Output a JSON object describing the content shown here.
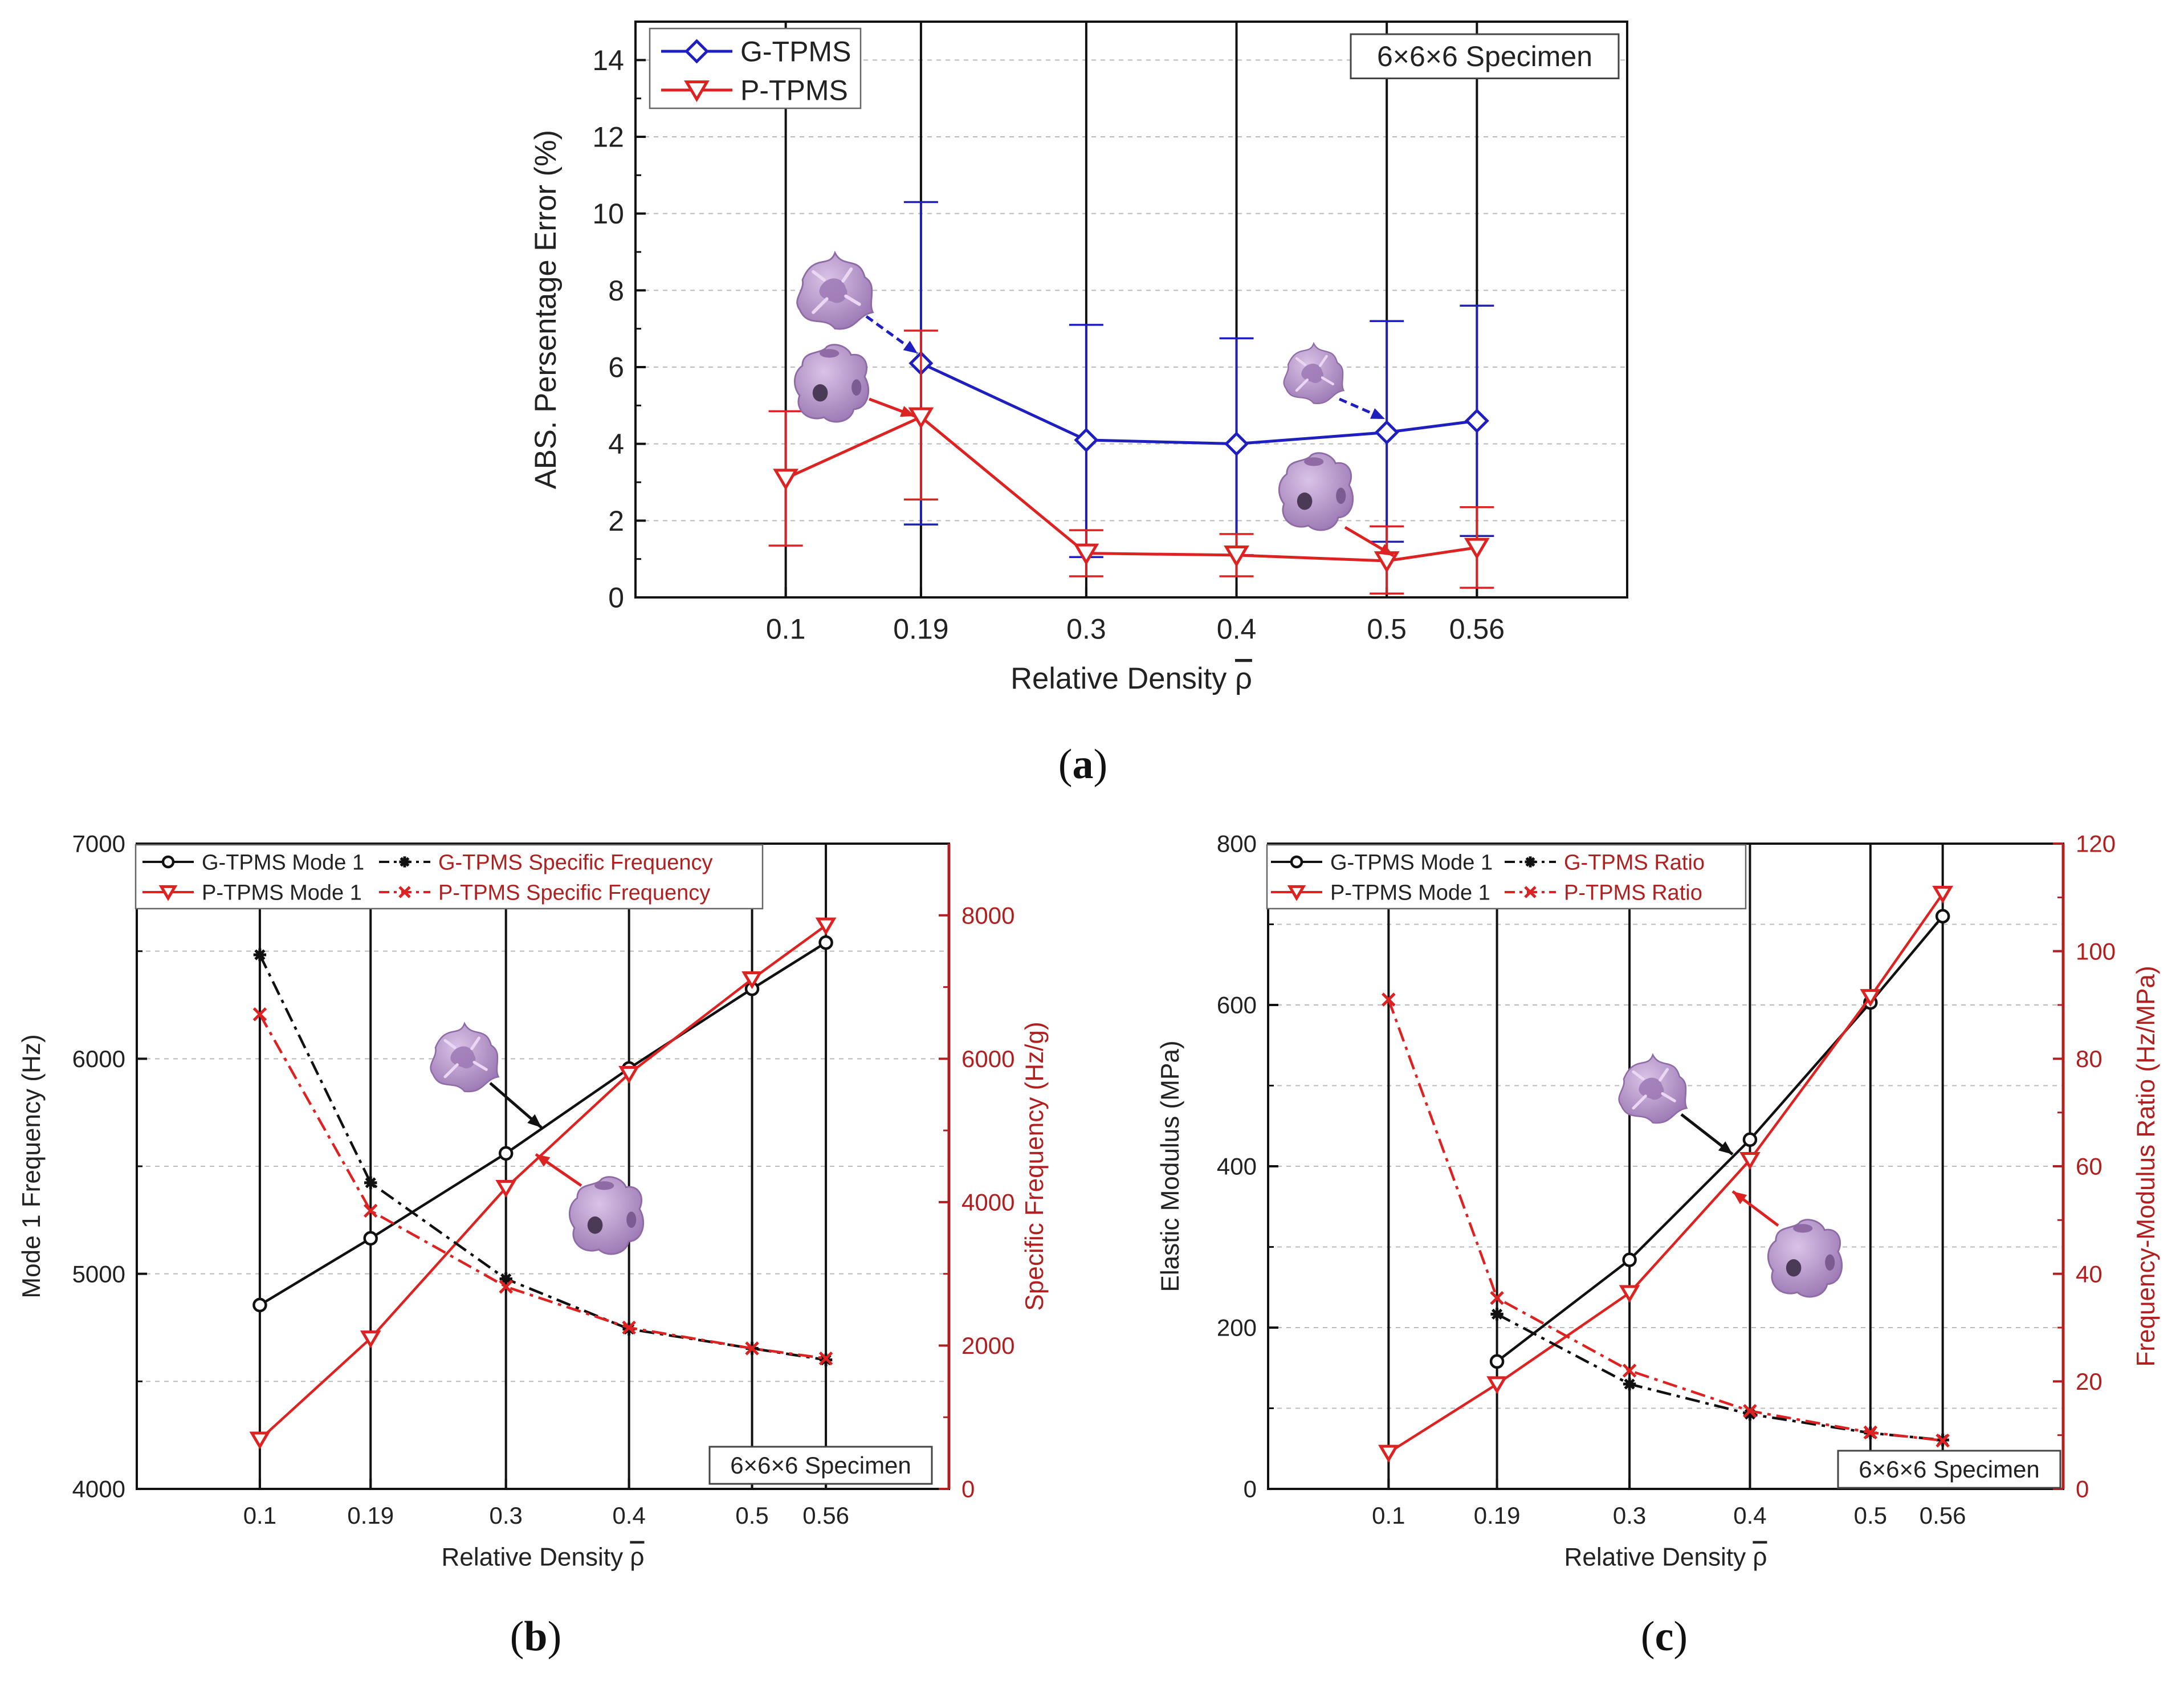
{
  "colors": {
    "g_tpms": "#1f1fbf",
    "p_tpms": "#dd2222",
    "black": "#111111",
    "axis_red": "#b02020",
    "grid": "#bbbbbb",
    "cell_purple": "#b28dc8"
  },
  "chart_data": [
    {
      "id": "a",
      "type": "line",
      "caption": "a",
      "xlabel": "Relative Density ",
      "xlabel_symbol": "ρ",
      "ylabel": "ABS. Persentage Error (%)",
      "categories": [
        "0.1",
        "0.19",
        "0.3",
        "0.4",
        "0.5",
        "0.56"
      ],
      "x": [
        0.1,
        0.19,
        0.3,
        0.4,
        0.5,
        0.56
      ],
      "xlim": [
        0.0,
        0.66
      ],
      "ylim": [
        0,
        15
      ],
      "yticks": [
        0,
        2,
        4,
        6,
        8,
        10,
        12,
        14
      ],
      "legend_position": "top-left",
      "annotation": "6×6×6 Specimen",
      "series": [
        {
          "name": "G-TPMS",
          "marker": "diamond",
          "color": "#1f1fbf",
          "values": [
            null,
            6.1,
            4.1,
            4.0,
            4.3,
            4.6
          ],
          "err_upper": [
            null,
            10.3,
            7.1,
            6.75,
            7.2,
            7.6
          ],
          "err_lower": [
            null,
            1.9,
            1.05,
            1.1,
            1.45,
            1.6
          ]
        },
        {
          "name": "P-TPMS",
          "marker": "triangle-down",
          "color": "#dd2222",
          "values": [
            3.1,
            4.7,
            1.15,
            1.1,
            0.95,
            1.3
          ],
          "err_upper": [
            4.85,
            6.95,
            1.75,
            1.65,
            1.85,
            2.35
          ],
          "err_lower": [
            1.35,
            2.55,
            0.55,
            0.55,
            0.1,
            0.25
          ]
        }
      ]
    },
    {
      "id": "b",
      "type": "line",
      "caption": "b",
      "xlabel": "Relative Density ",
      "xlabel_symbol": "ρ",
      "ylabel": "Mode 1 Frequency (Hz)",
      "y2label": "Specific Frequency (Hz/g)",
      "categories": [
        "0.1",
        "0.19",
        "0.3",
        "0.4",
        "0.5",
        "0.56"
      ],
      "x": [
        0.1,
        0.19,
        0.3,
        0.4,
        0.5,
        0.56
      ],
      "xlim": [
        0.0,
        0.66
      ],
      "ylim": [
        4000,
        7000
      ],
      "yticks": [
        4000,
        5000,
        6000,
        7000
      ],
      "y2lim": [
        0,
        9000
      ],
      "y2ticks": [
        0,
        2000,
        4000,
        6000,
        8000
      ],
      "legend_position": "top",
      "annotation": "6×6×6 Specimen",
      "series": [
        {
          "name": "G-TPMS Mode 1",
          "axis": "left",
          "marker": "circle",
          "color": "#111111",
          "dash": "solid",
          "values": [
            4855,
            5165,
            5560,
            5955,
            6325,
            6540
          ]
        },
        {
          "name": "P-TPMS Mode 1",
          "axis": "left",
          "marker": "triangle-down",
          "color": "#dd2222",
          "dash": "solid",
          "values": [
            4230,
            4700,
            5400,
            5930,
            6370,
            6620
          ]
        },
        {
          "name": "G-TPMS Specific Frequency",
          "axis": "right",
          "marker": "asterisk",
          "color": "#111111",
          "dash": "dashdot",
          "values": [
            7450,
            4270,
            2930,
            2230,
            1960,
            1800
          ]
        },
        {
          "name": "P-TPMS Specific Frequency",
          "axis": "right",
          "marker": "x",
          "color": "#dd2222",
          "dash": "dashdot",
          "values": [
            6620,
            3880,
            2820,
            2250,
            1960,
            1820
          ]
        }
      ]
    },
    {
      "id": "c",
      "type": "line",
      "caption": "c",
      "xlabel": "Relative Density ",
      "xlabel_symbol": "ρ",
      "ylabel": "Elastic Modulus (MPa)",
      "y2label": "Frequency-Modulus Ratio (Hz/MPa)",
      "categories": [
        "0.1",
        "0.19",
        "0.3",
        "0.4",
        "0.5",
        "0.56"
      ],
      "x": [
        0.1,
        0.19,
        0.3,
        0.4,
        0.5,
        0.56
      ],
      "xlim": [
        0.0,
        0.66
      ],
      "ylim": [
        0,
        800
      ],
      "yticks": [
        0,
        200,
        400,
        600,
        800
      ],
      "y2lim": [
        0,
        120
      ],
      "y2ticks": [
        0,
        20,
        40,
        60,
        80,
        100,
        120
      ],
      "legend_position": "top",
      "annotation": "6×6×6 Specimen",
      "series": [
        {
          "name": "G-TPMS Mode 1",
          "axis": "left",
          "marker": "circle",
          "color": "#111111",
          "dash": "solid",
          "values": [
            null,
            158,
            284,
            433,
            603,
            710
          ]
        },
        {
          "name": "P-TPMS Mode 1",
          "axis": "left",
          "marker": "triangle-down",
          "color": "#dd2222",
          "dash": "solid",
          "values": [
            45,
            130,
            243,
            408,
            610,
            738
          ]
        },
        {
          "name": "G-TPMS Ratio",
          "axis": "right",
          "marker": "asterisk",
          "color": "#111111",
          "dash": "dashdot",
          "values": [
            null,
            32.5,
            19.5,
            13.9,
            10.4,
            9.1
          ]
        },
        {
          "name": "P-TPMS Ratio",
          "axis": "right",
          "marker": "x",
          "color": "#dd2222",
          "dash": "dashdot",
          "values": [
            91,
            35.5,
            22,
            14.5,
            10.5,
            9
          ]
        }
      ]
    }
  ]
}
